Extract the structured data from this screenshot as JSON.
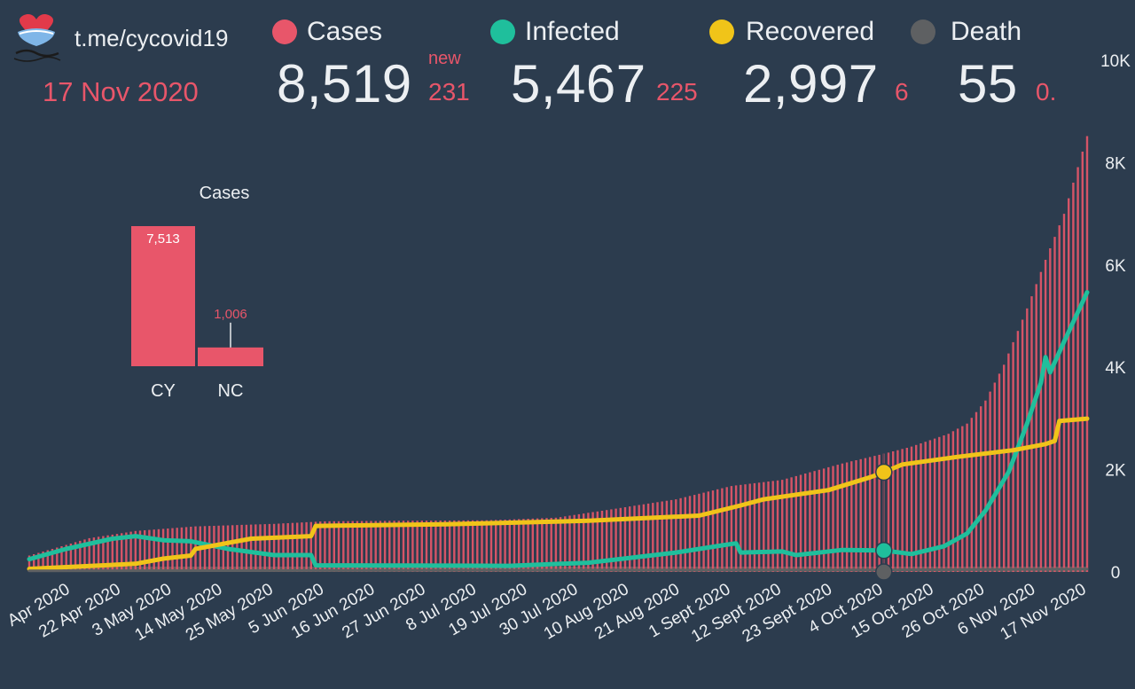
{
  "header": {
    "channel": "t.me/cycovid19",
    "date": "17 Nov 2020",
    "new_label": "new"
  },
  "legend": [
    {
      "name": "Cases",
      "color": "#e8566a"
    },
    {
      "name": "Infected",
      "color": "#1fbf9c"
    },
    {
      "name": "Recovered",
      "color": "#f0c419"
    },
    {
      "name": "Death",
      "color": "#5e6062"
    }
  ],
  "stats": {
    "cases": {
      "total": "8,519",
      "new": "231"
    },
    "infected": {
      "total": "5,467",
      "new": "225"
    },
    "recovered": {
      "total": "2,997",
      "new": "6"
    },
    "death": {
      "total": "55",
      "new": "0."
    }
  },
  "colors": {
    "background": "#2c3c4e",
    "accent": "#e8566a",
    "infected": "#1fbf9c",
    "recovered": "#f0c419",
    "death": "#5e6062"
  },
  "chart_data": [
    {
      "type": "bar",
      "title": "Cases",
      "categories": [
        "CY",
        "NC"
      ],
      "values": [
        7513,
        1006
      ],
      "value_labels": [
        "7,513",
        "1,006"
      ]
    },
    {
      "type": "line",
      "ylim": [
        0,
        10000
      ],
      "y_ticks": [
        "0",
        "2K",
        "4K",
        "6K",
        "8K",
        "10K"
      ],
      "y_tick_values": [
        0,
        2000,
        4000,
        6000,
        8000,
        10000
      ],
      "x_start": "2020-04-02",
      "x_end": "2020-11-17",
      "x_tick_labels": [
        "Apr 2020",
        "22 Apr 2020",
        "3 May 2020",
        "14 May 2020",
        "25 May 2020",
        "5 Jun 2020",
        "16 Jun 2020",
        "27 Jun 2020",
        "8 Jul 2020",
        "19 Jul 2020",
        "30 Jul 2020",
        "10 Aug 2020",
        "21 Aug 2020",
        "1 Sept 2020",
        "12 Sept 2020",
        "23 Sept 2020",
        "4 Oct 2020",
        "15 Oct 2020",
        "26 Oct 2020",
        "6 Nov 2020",
        "17 Nov 2020"
      ],
      "x_tick_dates": [
        "2020-04-11",
        "2020-04-22",
        "2020-05-03",
        "2020-05-14",
        "2020-05-25",
        "2020-06-05",
        "2020-06-16",
        "2020-06-27",
        "2020-07-08",
        "2020-07-19",
        "2020-07-30",
        "2020-08-10",
        "2020-08-21",
        "2020-09-01",
        "2020-09-12",
        "2020-09-23",
        "2020-10-04",
        "2020-10-15",
        "2020-10-26",
        "2020-11-06",
        "2020-11-17"
      ],
      "series": [
        {
          "name": "Cases",
          "style": "bars",
          "points": [
            [
              "2020-04-02",
              320
            ],
            [
              "2020-04-15",
              660
            ],
            [
              "2020-04-25",
              800
            ],
            [
              "2020-05-08",
              890
            ],
            [
              "2020-05-25",
              940
            ],
            [
              "2020-06-05",
              990
            ],
            [
              "2020-06-20",
              1000
            ],
            [
              "2020-07-10",
              1010
            ],
            [
              "2020-07-25",
              1060
            ],
            [
              "2020-08-05",
              1210
            ],
            [
              "2020-08-20",
              1420
            ],
            [
              "2020-09-01",
              1680
            ],
            [
              "2020-09-12",
              1800
            ],
            [
              "2020-09-25",
              2120
            ],
            [
              "2020-10-04",
              2310
            ],
            [
              "2020-10-10",
              2450
            ],
            [
              "2020-10-18",
              2700
            ],
            [
              "2020-10-22",
              2900
            ],
            [
              "2020-10-26",
              3350
            ],
            [
              "2020-10-30",
              4050
            ],
            [
              "2020-11-04",
              5150
            ],
            [
              "2020-11-08",
              6100
            ],
            [
              "2020-11-12",
              7000
            ],
            [
              "2020-11-17",
              8519
            ]
          ]
        },
        {
          "name": "Infected",
          "style": "line",
          "points": [
            [
              "2020-04-02",
              250
            ],
            [
              "2020-04-10",
              450
            ],
            [
              "2020-04-20",
              650
            ],
            [
              "2020-04-25",
              700
            ],
            [
              "2020-05-01",
              620
            ],
            [
              "2020-05-07",
              600
            ],
            [
              "2020-05-15",
              450
            ],
            [
              "2020-05-25",
              330
            ],
            [
              "2020-06-02",
              330
            ],
            [
              "2020-06-03",
              130
            ],
            [
              "2020-07-15",
              120
            ],
            [
              "2020-08-01",
              180
            ],
            [
              "2020-08-20",
              380
            ],
            [
              "2020-08-30",
              520
            ],
            [
              "2020-09-02",
              560
            ],
            [
              "2020-09-03",
              380
            ],
            [
              "2020-09-12",
              400
            ],
            [
              "2020-09-15",
              330
            ],
            [
              "2020-09-25",
              430
            ],
            [
              "2020-10-04",
              420
            ],
            [
              "2020-10-10",
              350
            ],
            [
              "2020-10-17",
              500
            ],
            [
              "2020-10-22",
              750
            ],
            [
              "2020-10-26",
              1200
            ],
            [
              "2020-10-31",
              1950
            ],
            [
              "2020-11-04",
              2900
            ],
            [
              "2020-11-07",
              3700
            ],
            [
              "2020-11-08",
              4200
            ],
            [
              "2020-11-09",
              3900
            ],
            [
              "2020-11-12",
              4500
            ],
            [
              "2020-11-17",
              5467
            ]
          ]
        },
        {
          "name": "Recovered",
          "style": "line",
          "points": [
            [
              "2020-04-02",
              60
            ],
            [
              "2020-04-25",
              160
            ],
            [
              "2020-05-01",
              260
            ],
            [
              "2020-05-07",
              320
            ],
            [
              "2020-05-08",
              450
            ],
            [
              "2020-05-20",
              650
            ],
            [
              "2020-06-02",
              700
            ],
            [
              "2020-06-03",
              900
            ],
            [
              "2020-07-01",
              930
            ],
            [
              "2020-08-01",
              1000
            ],
            [
              "2020-08-25",
              1100
            ],
            [
              "2020-09-03",
              1300
            ],
            [
              "2020-09-08",
              1420
            ],
            [
              "2020-09-22",
              1600
            ],
            [
              "2020-10-01",
              1850
            ],
            [
              "2020-10-04",
              1950
            ],
            [
              "2020-10-08",
              2100
            ],
            [
              "2020-10-20",
              2250
            ],
            [
              "2020-11-01",
              2380
            ],
            [
              "2020-11-08",
              2500
            ],
            [
              "2020-11-10",
              2560
            ],
            [
              "2020-11-11",
              2950
            ],
            [
              "2020-11-17",
              2997
            ]
          ]
        },
        {
          "name": "Death",
          "style": "line",
          "points": [
            [
              "2020-04-02",
              20
            ],
            [
              "2020-06-01",
              27
            ],
            [
              "2020-08-01",
              36
            ],
            [
              "2020-10-04",
              40
            ],
            [
              "2020-11-17",
              55
            ]
          ]
        }
      ],
      "hover_marker_date": "2020-10-04"
    }
  ]
}
